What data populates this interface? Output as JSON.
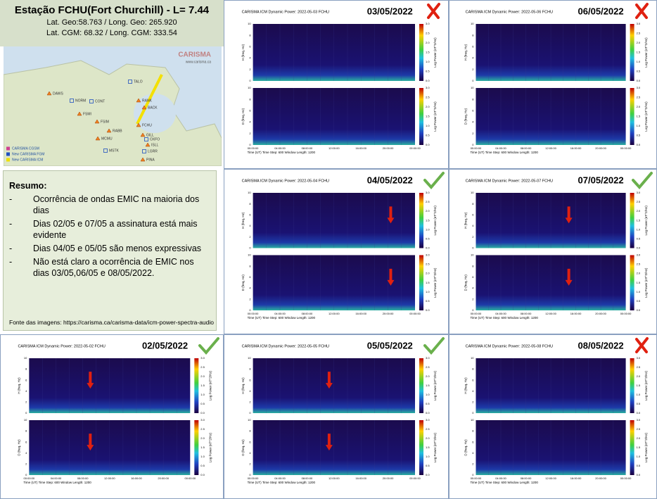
{
  "header": {
    "title": "Estação FCHU(Fort Churchill) - L= 7.44",
    "line1": "Lat. Geo:58.763 / Long. Geo: 265.920",
    "line2": "Lat. CGM: 68.32 / Long. CGM: 333.54"
  },
  "map": {
    "logo": "CARISMA",
    "url": "www.carisma.ca",
    "stations": [
      {
        "name": "DAWS",
        "kind": "triangle"
      },
      {
        "name": "NORM",
        "kind": "square"
      },
      {
        "name": "CONT",
        "kind": "square"
      },
      {
        "name": "TALO",
        "kind": "square"
      },
      {
        "name": "RANK",
        "kind": "triangle"
      },
      {
        "name": "FSMI",
        "kind": "triangle"
      },
      {
        "name": "FSIM",
        "kind": "triangle"
      },
      {
        "name": "FCHU",
        "kind": "triangle"
      },
      {
        "name": "RABB",
        "kind": "triangle"
      },
      {
        "name": "BACK",
        "kind": "triangle"
      },
      {
        "name": "GILL",
        "kind": "triangle"
      },
      {
        "name": "MCMU",
        "kind": "triangle"
      },
      {
        "name": "OXFO",
        "kind": "square"
      },
      {
        "name": "ISLL",
        "kind": "triangle"
      },
      {
        "name": "MSTK",
        "kind": "square"
      },
      {
        "name": "LGRR",
        "kind": "square"
      },
      {
        "name": "PINA",
        "kind": "triangle"
      }
    ],
    "legend": [
      "CARISMA CGSM",
      "New CARISMA FGM",
      "New CARISMA ICM"
    ]
  },
  "summary": {
    "title": "Resumo:",
    "items": [
      "Ocorrência de ondas EMIC na maioria dos dias",
      "Dias 02/05 e 07/05 a assinatura está mais evidente",
      "Dias 04/05 e 05/05 são menos expressivas",
      "Não está claro a ocorrência de EMIC nos dias 03/05,06/05 e 08/05/2022."
    ],
    "source": "Fonte das imagens: https://carisma.ca/carisma-data/icm-power-spectra-audio"
  },
  "axes": {
    "h_label": "H (freq, Hz)",
    "d_label": "D (freq, Hz)",
    "power_label": "Log Power (nT^2/Hz)",
    "x_title": "Time (UT) Time Step: 600   Window Length: 1200",
    "yticks": [
      "0",
      "2",
      "4",
      "6",
      "8",
      "10"
    ],
    "cbar_ticks": [
      "3.0",
      "2.5",
      "2.0",
      "1.5",
      "1.0",
      "0.5",
      "0.0"
    ],
    "xticks": [
      "00:00:00",
      "04:00:00",
      "08:00:00",
      "12:00:00",
      "16:00:00",
      "20:00:00",
      "00:00:00"
    ]
  },
  "panels": [
    {
      "title": "CARISMA ICM Dynamic Power: 2022-05-03 FCHU",
      "date": "03/05/2022",
      "status": "cross",
      "arrows": false
    },
    {
      "title": "CARISMA ICM Dynamic Power: 2022-05-06 FCHU",
      "date": "06/05/2022",
      "status": "cross",
      "arrows": false
    },
    {
      "title": "CARISMA ICM Dynamic Power: 2022-05-04 FCHU",
      "date": "04/05/2022",
      "status": "check",
      "arrows": true
    },
    {
      "title": "CARISMA ICM Dynamic Power: 2022-05-07 FCHU",
      "date": "07/05/2022",
      "status": "check",
      "arrows": true
    },
    {
      "title": "CARISMA ICM Dynamic Power: 2022-05-02 FCHU",
      "date": "02/05/2022",
      "status": "check",
      "arrows": true
    },
    {
      "title": "CARISMA ICM Dynamic Power: 2022-05-05 FCHU",
      "date": "05/05/2022",
      "status": "check",
      "arrows": true
    },
    {
      "title": "CARISMA ICM Dynamic Power: 2022-05-08 FCHU",
      "date": "08/05/2022",
      "status": "cross",
      "arrows": false
    }
  ]
}
